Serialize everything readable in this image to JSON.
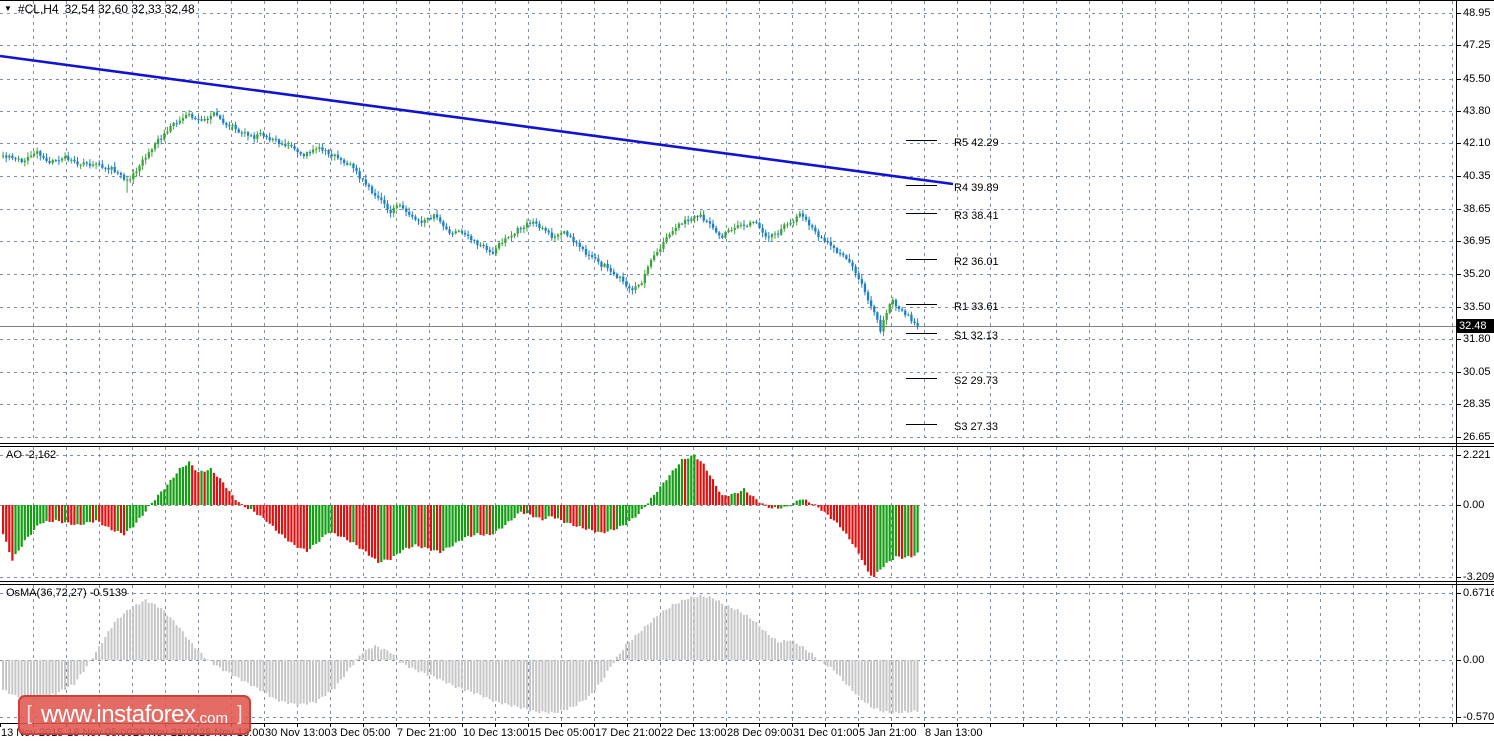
{
  "window": {
    "symbol_timeframe": "#CL,H4",
    "ohlc_text": "32,54 32,60 32,33 32,48",
    "dropdown_icon": "symbol-dropdown"
  },
  "colors": {
    "background": "#ffffff",
    "grid": "#8090a4",
    "bull_candle": "#3fa23f",
    "bear_candle": "#1e7fc8",
    "ao_up": "#119e11",
    "ao_down": "#e01010",
    "osma_bar": "#c6c6c6",
    "trendline": "#1212d2",
    "current_price_line": "#808080",
    "badge_bg": "#000000",
    "badge_text": "#ffffff",
    "logo_bg": "rgba(224,88,80,0.88)",
    "logo_border": "rgba(198,62,56,0.9)",
    "panel_border": "#000000"
  },
  "main_panel": {
    "price_ticks": [
      "48.95",
      "47.25",
      "45.50",
      "43.80",
      "42.10",
      "40.35",
      "38.65",
      "36.95",
      "35.20",
      "33.50",
      "31.80",
      "30.05",
      "28.35",
      "26.65"
    ],
    "pivots": [
      {
        "label": "R5 42.29",
        "value": 42.29
      },
      {
        "label": "R4 39.89",
        "value": 39.89
      },
      {
        "label": "R3 38.41",
        "value": 38.41
      },
      {
        "label": "R2 36.01",
        "value": 36.01
      },
      {
        "label": "R1 33.61",
        "value": 33.61
      },
      {
        "label": "S1 32.13",
        "value": 32.13
      },
      {
        "label": "S2 29.73",
        "value": 29.73
      },
      {
        "label": "S3 27.33",
        "value": 27.33
      }
    ],
    "current_price_badge": "32.48",
    "current_price": 32.48
  },
  "ao_panel": {
    "label": "AO -2,162",
    "current": -2.162,
    "ticks": [
      "2.221",
      "0.00",
      "-3.209"
    ]
  },
  "osma_panel": {
    "label": "OsMA(36,72,27) -0.5139",
    "current": -0.5139,
    "ticks": [
      "0.6716",
      "0.00",
      "-0.5703"
    ]
  },
  "time_axis": {
    "labels": [
      "13 Nov 2015",
      "18 Nov 05:00",
      "20 Nov 21:00",
      "25 Nov 13:00",
      "30 Nov 13:00",
      "3 Dec 05:00",
      "7 Dec 21:00",
      "10 Dec 13:00",
      "15 Dec 05:00",
      "17 Dec 21:00",
      "22 Dec 13:00",
      "28 Dec 09:00",
      "31 Dec 01:00",
      "5 Jan 21:00",
      "8 Jan 13:00"
    ]
  },
  "logo": {
    "bracket_left": "[",
    "text": "www.instaforex",
    "suffix": ".com",
    "bracket_right": "]"
  },
  "chart_data": [
    {
      "type": "candlestick",
      "title": "#CL,H4 32,54 32,60 32,33 32,48",
      "symbol": "#CL",
      "timeframe": "H4",
      "bars": 296,
      "ylim": [
        26.65,
        48.95
      ],
      "last_ohlc": {
        "open": 32.54,
        "high": 32.6,
        "low": 32.33,
        "close": 32.48
      },
      "trendline": {
        "from_bar": 0,
        "from_price": 46.25,
        "to_bar": 307,
        "to_price": 39.95,
        "note": "descending blue trendline"
      },
      "close_keypoints": [
        [
          0,
          41.4
        ],
        [
          6,
          41.15
        ],
        [
          11,
          41.6
        ],
        [
          15,
          41.1
        ],
        [
          20,
          41.3
        ],
        [
          25,
          41.0
        ],
        [
          30,
          40.9
        ],
        [
          35,
          40.75
        ],
        [
          38,
          40.4
        ],
        [
          40,
          40.05
        ],
        [
          43,
          40.7
        ],
        [
          48,
          41.8
        ],
        [
          52,
          42.6
        ],
        [
          56,
          43.2
        ],
        [
          60,
          43.55
        ],
        [
          64,
          43.3
        ],
        [
          68,
          43.6
        ],
        [
          72,
          43.15
        ],
        [
          76,
          42.75
        ],
        [
          80,
          42.45
        ],
        [
          84,
          42.55
        ],
        [
          88,
          42.2
        ],
        [
          93,
          41.85
        ],
        [
          97,
          41.5
        ],
        [
          101,
          41.9
        ],
        [
          105,
          41.6
        ],
        [
          110,
          41.2
        ],
        [
          114,
          40.6
        ],
        [
          118,
          39.7
        ],
        [
          122,
          39.0
        ],
        [
          125,
          38.5
        ],
        [
          128,
          38.85
        ],
        [
          132,
          38.2
        ],
        [
          135,
          37.9
        ],
        [
          139,
          38.35
        ],
        [
          142,
          37.7
        ],
        [
          145,
          37.3
        ],
        [
          148,
          37.45
        ],
        [
          152,
          36.9
        ],
        [
          155,
          36.6
        ],
        [
          158,
          36.35
        ],
        [
          161,
          36.9
        ],
        [
          165,
          37.35
        ],
        [
          168,
          37.8
        ],
        [
          171,
          37.95
        ],
        [
          174,
          37.6
        ],
        [
          177,
          37.25
        ],
        [
          181,
          37.45
        ],
        [
          184,
          36.95
        ],
        [
          187,
          36.5
        ],
        [
          190,
          36.05
        ],
        [
          194,
          35.6
        ],
        [
          197,
          35.2
        ],
        [
          200,
          34.8
        ],
        [
          203,
          34.45
        ],
        [
          206,
          34.8
        ],
        [
          209,
          35.9
        ],
        [
          212,
          36.6
        ],
        [
          214,
          37.2
        ],
        [
          217,
          37.65
        ],
        [
          220,
          38.0
        ],
        [
          223,
          38.2
        ],
        [
          225,
          38.3
        ],
        [
          228,
          37.9
        ],
        [
          230,
          37.5
        ],
        [
          232,
          37.15
        ],
        [
          234,
          37.5
        ],
        [
          237,
          37.85
        ],
        [
          239,
          37.7
        ],
        [
          242,
          37.95
        ],
        [
          245,
          37.5
        ],
        [
          247,
          37.1
        ],
        [
          250,
          37.35
        ],
        [
          252,
          37.75
        ],
        [
          255,
          38.05
        ],
        [
          257,
          38.35
        ],
        [
          259,
          38.0
        ],
        [
          261,
          37.6
        ],
        [
          263,
          37.2
        ],
        [
          266,
          36.9
        ],
        [
          268,
          36.5
        ],
        [
          271,
          36.15
        ],
        [
          274,
          35.65
        ],
        [
          276,
          35.0
        ],
        [
          278,
          34.3
        ],
        [
          280,
          33.5
        ],
        [
          282,
          32.7
        ],
        [
          283,
          32.3
        ],
        [
          284,
          32.9
        ],
        [
          286,
          33.6
        ],
        [
          287,
          33.75
        ],
        [
          289,
          33.5
        ],
        [
          291,
          33.1
        ],
        [
          293,
          32.8
        ],
        [
          295,
          32.48
        ]
      ]
    },
    {
      "type": "bar",
      "name": "AO",
      "current": -2.162,
      "ylim": [
        -3.209,
        2.221
      ],
      "color_rule": "green if rising vs previous bar, red if falling",
      "keypoints": [
        [
          0,
          -1.3
        ],
        [
          3,
          -2.45
        ],
        [
          7,
          -1.6
        ],
        [
          12,
          -0.8
        ],
        [
          17,
          -0.7
        ],
        [
          24,
          -0.9
        ],
        [
          30,
          -0.7
        ],
        [
          35,
          -1.1
        ],
        [
          39,
          -1.3
        ],
        [
          42,
          -0.95
        ],
        [
          45,
          -0.45
        ],
        [
          48,
          0.1
        ],
        [
          53,
          0.9
        ],
        [
          57,
          1.6
        ],
        [
          60,
          1.9
        ],
        [
          63,
          1.45
        ],
        [
          67,
          1.6
        ],
        [
          71,
          1.0
        ],
        [
          74,
          0.4
        ],
        [
          77,
          0.0
        ],
        [
          81,
          -0.3
        ],
        [
          85,
          -0.7
        ],
        [
          89,
          -1.25
        ],
        [
          94,
          -1.8
        ],
        [
          98,
          -2.05
        ],
        [
          102,
          -1.6
        ],
        [
          105,
          -1.2
        ],
        [
          109,
          -1.4
        ],
        [
          113,
          -1.7
        ],
        [
          117,
          -2.1
        ],
        [
          121,
          -2.55
        ],
        [
          125,
          -2.4
        ],
        [
          129,
          -2.0
        ],
        [
          133,
          -1.8
        ],
        [
          137,
          -1.95
        ],
        [
          141,
          -2.1
        ],
        [
          145,
          -1.8
        ],
        [
          149,
          -1.45
        ],
        [
          153,
          -1.3
        ],
        [
          157,
          -1.35
        ],
        [
          161,
          -1.0
        ],
        [
          165,
          -0.55
        ],
        [
          167,
          -0.3
        ],
        [
          170,
          -0.45
        ],
        [
          174,
          -0.65
        ],
        [
          177,
          -0.5
        ],
        [
          181,
          -0.75
        ],
        [
          185,
          -0.95
        ],
        [
          189,
          -1.1
        ],
        [
          193,
          -1.25
        ],
        [
          197,
          -1.1
        ],
        [
          201,
          -0.85
        ],
        [
          205,
          -0.4
        ],
        [
          208,
          0.1
        ],
        [
          212,
          0.8
        ],
        [
          216,
          1.5
        ],
        [
          219,
          2.0
        ],
        [
          223,
          2.22
        ],
        [
          226,
          1.8
        ],
        [
          229,
          1.1
        ],
        [
          232,
          0.4
        ],
        [
          236,
          0.5
        ],
        [
          239,
          0.7
        ],
        [
          242,
          0.35
        ],
        [
          245,
          0.05
        ],
        [
          248,
          -0.15
        ],
        [
          252,
          -0.12
        ],
        [
          255,
          0.05
        ],
        [
          257,
          0.28
        ],
        [
          260,
          0.15
        ],
        [
          263,
          -0.1
        ],
        [
          266,
          -0.45
        ],
        [
          270,
          -0.95
        ],
        [
          274,
          -1.7
        ],
        [
          277,
          -2.4
        ],
        [
          279,
          -3.0
        ],
        [
          281,
          -3.2
        ],
        [
          283,
          -2.85
        ],
        [
          286,
          -2.5
        ],
        [
          288,
          -2.3
        ],
        [
          290,
          -2.35
        ],
        [
          293,
          -2.3
        ],
        [
          295,
          -2.162
        ]
      ]
    },
    {
      "type": "bar",
      "name": "OsMA",
      "params": "36,72,27",
      "current": -0.5139,
      "ylim": [
        -0.5703,
        0.6716
      ],
      "color_rule": "all bars silver",
      "keypoints": [
        [
          0,
          -0.3
        ],
        [
          4,
          -0.36
        ],
        [
          11,
          -0.38
        ],
        [
          17,
          -0.34
        ],
        [
          23,
          -0.24
        ],
        [
          28,
          -0.02
        ],
        [
          32,
          0.18
        ],
        [
          36,
          0.38
        ],
        [
          41,
          0.52
        ],
        [
          46,
          0.6
        ],
        [
          51,
          0.52
        ],
        [
          56,
          0.36
        ],
        [
          61,
          0.16
        ],
        [
          66,
          0.0
        ],
        [
          71,
          -0.1
        ],
        [
          77,
          -0.2
        ],
        [
          83,
          -0.3
        ],
        [
          88,
          -0.4
        ],
        [
          95,
          -0.45
        ],
        [
          101,
          -0.42
        ],
        [
          107,
          -0.28
        ],
        [
          112,
          -0.08
        ],
        [
          116,
          0.08
        ],
        [
          120,
          0.14
        ],
        [
          125,
          0.08
        ],
        [
          128,
          -0.02
        ],
        [
          133,
          -0.1
        ],
        [
          140,
          -0.18
        ],
        [
          146,
          -0.27
        ],
        [
          153,
          -0.34
        ],
        [
          159,
          -0.42
        ],
        [
          166,
          -0.47
        ],
        [
          172,
          -0.52
        ],
        [
          178,
          -0.53
        ],
        [
          184,
          -0.47
        ],
        [
          189,
          -0.37
        ],
        [
          193,
          -0.22
        ],
        [
          197,
          -0.02
        ],
        [
          201,
          0.15
        ],
        [
          206,
          0.3
        ],
        [
          211,
          0.44
        ],
        [
          216,
          0.55
        ],
        [
          221,
          0.62
        ],
        [
          225,
          0.645
        ],
        [
          229,
          0.62
        ],
        [
          233,
          0.55
        ],
        [
          237,
          0.5
        ],
        [
          242,
          0.4
        ],
        [
          246,
          0.28
        ],
        [
          250,
          0.18
        ],
        [
          254,
          0.2
        ],
        [
          257,
          0.15
        ],
        [
          261,
          0.06
        ],
        [
          264,
          -0.02
        ],
        [
          268,
          -0.1
        ],
        [
          272,
          -0.24
        ],
        [
          276,
          -0.37
        ],
        [
          280,
          -0.47
        ],
        [
          284,
          -0.52
        ],
        [
          288,
          -0.53
        ],
        [
          292,
          -0.52
        ],
        [
          295,
          -0.514
        ]
      ]
    }
  ]
}
